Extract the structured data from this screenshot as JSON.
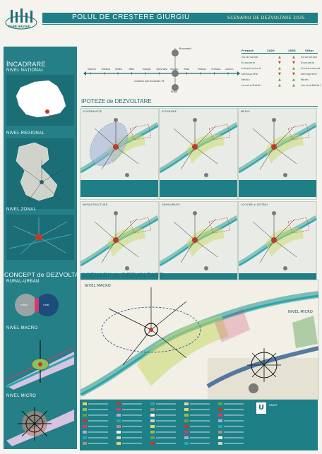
{
  "header": {
    "logo_text": "PoliN GiUrGiU",
    "title": "POLUL DE CREȘTERE GIURGIU",
    "subtitle": "SCENARIU DE DEZVOLTARE 2035"
  },
  "timeline": {
    "stations": [
      "Găiceni",
      "Orădina",
      "Vedea",
      "Maia",
      "Giurgiu",
      "Zavvrazia",
      "Giurgiu",
      "Ruse",
      "Pietrișe",
      "Prahova",
      "Cordun"
    ],
    "top_label": "București",
    "bottom_label": "Ruse",
    "corridor_label": "coridorul pan-european VII"
  },
  "trend_table": {
    "headers": [
      "Prezent",
      "2020",
      "2035",
      "Viitor"
    ],
    "rows": [
      {
        "left": "Guvernanță",
        "right": "Guvernanță"
      },
      {
        "left": "Economie",
        "right": "Economie"
      },
      {
        "left": "Infrastructură",
        "right": "Infrastructură"
      },
      {
        "left": "Demografie",
        "right": "Demografie"
      },
      {
        "left": "Mediu",
        "right": "Mediu"
      },
      {
        "left": "Locuire/Dotări",
        "right": "Locuire/Dotări"
      }
    ]
  },
  "sidebar": {
    "incadrare": "ÎNCADRARE",
    "nivel_national": "NIVEL NAȚIONAL",
    "nivel_regional": "NIVEL REGIONAL",
    "nivel_zonal": "NIVEL ZONAL",
    "concept": "CONCEPT de DEZVOLTARE",
    "concept_sub": "RURAL-URBAN",
    "nivel_macro": "NIVEL MACRO",
    "nivel_micro": "NIVEL MICRO",
    "pie_labels": [
      "urban",
      "rural"
    ]
  },
  "ipoteze": {
    "heading": "IPOTEZE de DEZVOLTARE",
    "panels": [
      {
        "title": "GUVERNANȚĂ"
      },
      {
        "title": "ECONOMIE"
      },
      {
        "title": "MEDIU"
      },
      {
        "title": "INFRASTRUCTURĂ"
      },
      {
        "title": "DEMOGRAFIE"
      },
      {
        "title": "LOCUIRE și DOTĂRI"
      }
    ]
  },
  "scenarii": {
    "heading": "SCENARII de DEZVOLTARE",
    "nivel_macro": "NIVEL MACRO",
    "nivel_micro": "NIVEL MICRO"
  },
  "footer": {
    "university_label": "UAUIM",
    "authors": "Coordonatori: ..."
  },
  "colors": {
    "teal": "#247f87",
    "accent_red": "#c0392b",
    "river": "#2aa5b0",
    "green": "#5fa356"
  }
}
